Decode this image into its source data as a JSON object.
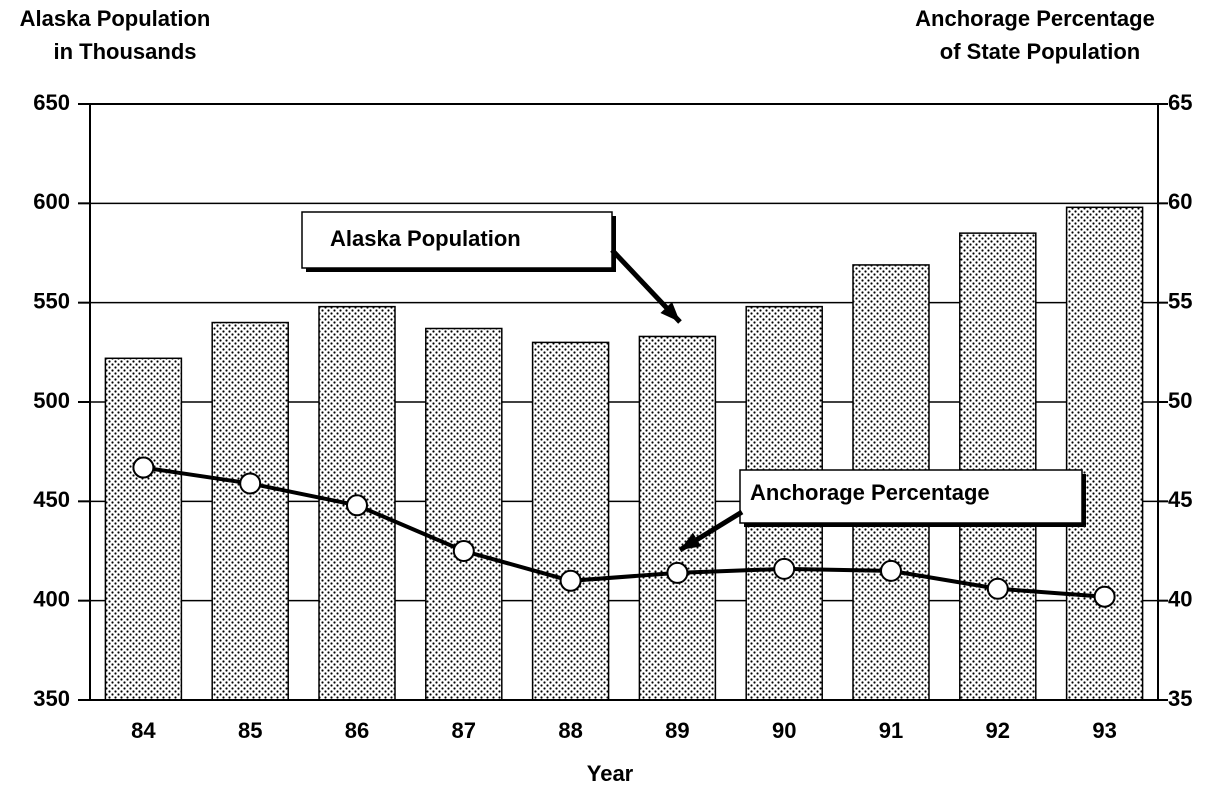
{
  "chart_data": {
    "type": "bar_line",
    "y_label": [
      "Alaska Population",
      "in Thousands"
    ],
    "y2_label": [
      "Anchorage Percentage",
      "of State Population"
    ],
    "x_label": "Year",
    "categories": [
      "84",
      "85",
      "86",
      "87",
      "88",
      "89",
      "90",
      "91",
      "92",
      "93"
    ],
    "series": [
      {
        "name": "Alaska Population",
        "type": "bar",
        "color": "#000000",
        "values": [
          522,
          540,
          548,
          537,
          530,
          533,
          548,
          569,
          585,
          598
        ]
      },
      {
        "name": "Anchorage Percentage",
        "type": "line",
        "axis": "y2",
        "color": "#000000",
        "values": [
          46.7,
          45.9,
          44.8,
          42.5,
          41.0,
          41.4,
          41.6,
          41.5,
          40.6,
          40.2
        ]
      }
    ],
    "ylim": [
      350,
      650
    ],
    "yticks": [
      350,
      400,
      450,
      500,
      550,
      600,
      650
    ],
    "y2lim": [
      35,
      65
    ],
    "y2ticks": [
      35,
      40,
      45,
      50,
      55,
      60,
      65
    ],
    "grid": true
  }
}
